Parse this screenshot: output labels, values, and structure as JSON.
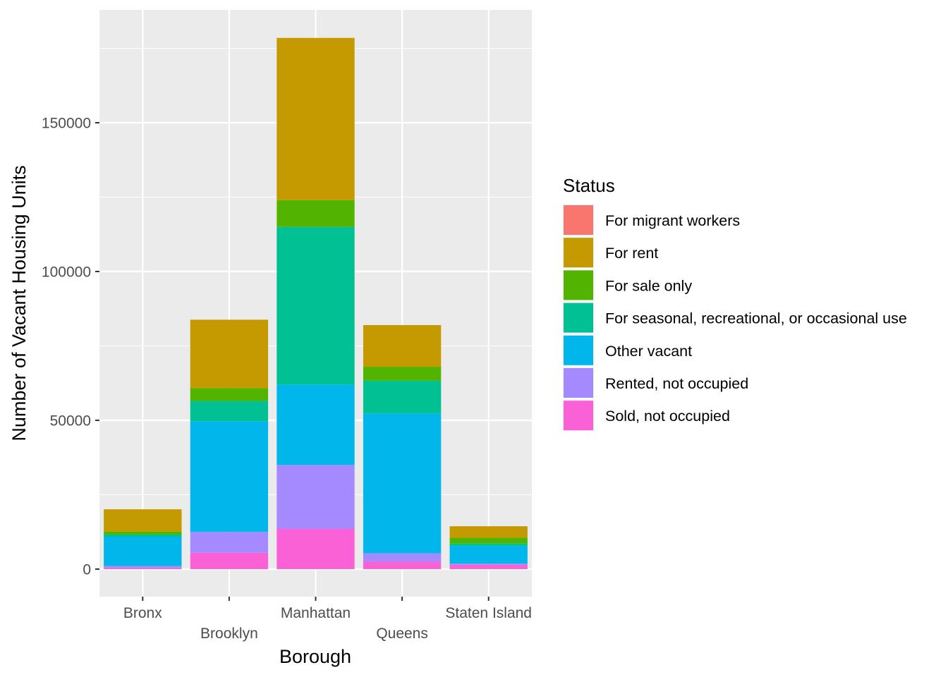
{
  "chart_data": {
    "type": "bar",
    "stacked": true,
    "xlabel": "Borough",
    "ylabel": "Number of Vacant Housing Units",
    "categories": [
      "Bronx",
      "Brooklyn",
      "Manhattan",
      "Queens",
      "Staten Island"
    ],
    "ylim": [
      -9000,
      188000
    ],
    "yticks": [
      0,
      50000,
      100000,
      150000
    ],
    "grid": true,
    "legend": {
      "title": "Status",
      "position": "right"
    },
    "series": [
      {
        "name": "For migrant workers",
        "color": "#F8766D",
        "values": [
          0,
          0,
          0,
          0,
          0
        ]
      },
      {
        "name": "For rent",
        "color": "#C49A00",
        "values": [
          7500,
          23000,
          54500,
          14000,
          3800
        ]
      },
      {
        "name": "For sale only",
        "color": "#53B400",
        "values": [
          1000,
          4300,
          9000,
          4700,
          2000
        ]
      },
      {
        "name": "For seasonal, recreational, or occasional use",
        "color": "#00C094",
        "values": [
          700,
          6800,
          53000,
          11000,
          800
        ]
      },
      {
        "name": "Other vacant",
        "color": "#00B6EB",
        "values": [
          9900,
          37200,
          27000,
          47000,
          6000
        ]
      },
      {
        "name": "Rented, not occupied",
        "color": "#A58AFF",
        "values": [
          500,
          7000,
          21500,
          2800,
          300
        ]
      },
      {
        "name": "Sold, not occupied",
        "color": "#FB61D7",
        "values": [
          500,
          5500,
          13500,
          2500,
          1500
        ]
      }
    ]
  }
}
